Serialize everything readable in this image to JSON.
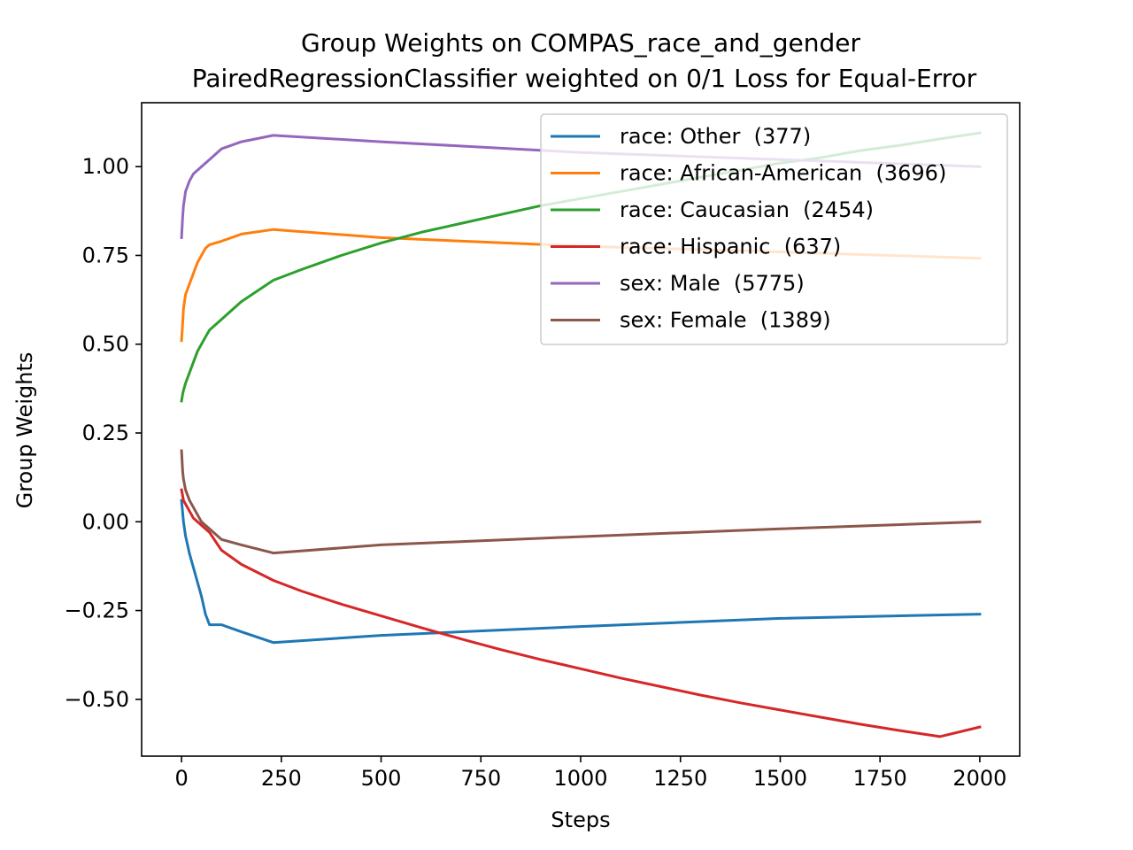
{
  "chart_data": {
    "type": "line",
    "title": "Group Weights on COMPAS_race_and_gender",
    "subtitle": "PairedRegressionClassifier weighted on 0/1 Loss for Equal-Error",
    "xlabel": "Steps",
    "ylabel": "Group Weights",
    "xlim": [
      -100,
      2100
    ],
    "ylim": [
      -0.66,
      1.18
    ],
    "xticks": [
      0,
      250,
      500,
      750,
      1000,
      1250,
      1500,
      1750,
      2000
    ],
    "xtick_labels": [
      "0",
      "250",
      "500",
      "750",
      "1000",
      "1250",
      "1500",
      "1750",
      "2000"
    ],
    "yticks": [
      -0.5,
      -0.25,
      0.0,
      0.25,
      0.5,
      0.75,
      1.0
    ],
    "ytick_labels": [
      "−0.50",
      "−0.25",
      "0.00",
      "0.25",
      "0.50",
      "0.75",
      "1.00"
    ],
    "grid": false,
    "legend_position": "top-right",
    "series": [
      {
        "name": "race: Other  (377)",
        "color": "#1f77b4",
        "x": [
          0,
          5,
          10,
          20,
          30,
          40,
          50,
          60,
          70,
          80,
          90,
          100,
          150,
          230,
          500,
          1000,
          1500,
          2000
        ],
        "y": [
          0.06,
          0.0,
          -0.04,
          -0.09,
          -0.13,
          -0.17,
          -0.21,
          -0.26,
          -0.29,
          -0.29,
          -0.29,
          -0.29,
          -0.31,
          -0.34,
          -0.32,
          -0.295,
          -0.272,
          -0.26
        ]
      },
      {
        "name": "race: African-American  (3696)",
        "color": "#ff7f0e",
        "x": [
          0,
          3,
          5,
          10,
          20,
          30,
          40,
          50,
          60,
          70,
          100,
          150,
          230,
          500,
          1000,
          1500,
          2000
        ],
        "y": [
          0.51,
          0.56,
          0.6,
          0.64,
          0.67,
          0.7,
          0.73,
          0.75,
          0.77,
          0.78,
          0.79,
          0.81,
          0.823,
          0.8,
          0.776,
          0.76,
          0.742
        ]
      },
      {
        "name": "race: Caucasian  (2454)",
        "color": "#2ca02c",
        "x": [
          0,
          3,
          5,
          10,
          20,
          30,
          40,
          50,
          60,
          70,
          100,
          150,
          230,
          300,
          400,
          500,
          600,
          700,
          800,
          900,
          1000,
          1100,
          1200,
          1300,
          1400,
          1500,
          1600,
          1700,
          1800,
          1900,
          2000
        ],
        "y": [
          0.34,
          0.36,
          0.37,
          0.39,
          0.42,
          0.45,
          0.48,
          0.5,
          0.52,
          0.54,
          0.57,
          0.62,
          0.68,
          0.71,
          0.75,
          0.785,
          0.815,
          0.84,
          0.865,
          0.89,
          0.91,
          0.93,
          0.95,
          0.97,
          0.99,
          1.01,
          1.025,
          1.045,
          1.06,
          1.078,
          1.095
        ]
      },
      {
        "name": "race: Hispanic  (637)",
        "color": "#d62728",
        "x": [
          0,
          5,
          10,
          20,
          30,
          40,
          50,
          60,
          70,
          100,
          150,
          230,
          300,
          400,
          500,
          600,
          700,
          800,
          900,
          1000,
          1100,
          1200,
          1300,
          1400,
          1500,
          1600,
          1700,
          1800,
          1900,
          2000
        ],
        "y": [
          0.09,
          0.06,
          0.05,
          0.03,
          0.01,
          0.0,
          -0.01,
          -0.02,
          -0.03,
          -0.08,
          -0.12,
          -0.165,
          -0.195,
          -0.232,
          -0.265,
          -0.298,
          -0.33,
          -0.36,
          -0.388,
          -0.414,
          -0.44,
          -0.464,
          -0.488,
          -0.51,
          -0.53,
          -0.55,
          -0.57,
          -0.588,
          -0.605,
          -0.578
        ]
      },
      {
        "name": "sex: Male  (5775)",
        "color": "#9467bd",
        "x": [
          0,
          3,
          5,
          10,
          20,
          30,
          40,
          50,
          60,
          70,
          100,
          150,
          230,
          500,
          1000,
          1500,
          2000
        ],
        "y": [
          0.8,
          0.86,
          0.89,
          0.93,
          0.96,
          0.98,
          0.99,
          1.0,
          1.01,
          1.02,
          1.05,
          1.07,
          1.088,
          1.07,
          1.04,
          1.02,
          1.0
        ]
      },
      {
        "name": "sex: Female  (1389)",
        "color": "#8c564b",
        "x": [
          0,
          3,
          5,
          10,
          20,
          30,
          40,
          50,
          60,
          70,
          100,
          150,
          230,
          500,
          1000,
          1500,
          2000
        ],
        "y": [
          0.2,
          0.14,
          0.12,
          0.09,
          0.06,
          0.04,
          0.02,
          0.0,
          -0.01,
          -0.02,
          -0.05,
          -0.065,
          -0.088,
          -0.065,
          -0.042,
          -0.02,
          0.0
        ]
      }
    ]
  }
}
